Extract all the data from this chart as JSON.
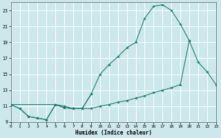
{
  "xlabel": "Humidex (Indice chaleur)",
  "xlim": [
    0,
    23
  ],
  "ylim": [
    9,
    24
  ],
  "yticks": [
    9,
    11,
    13,
    15,
    17,
    19,
    21,
    23
  ],
  "xticks": [
    0,
    1,
    2,
    3,
    4,
    5,
    6,
    7,
    8,
    9,
    10,
    11,
    12,
    13,
    14,
    15,
    16,
    17,
    18,
    19,
    20,
    21,
    22,
    23
  ],
  "bg_color": "#cce8ec",
  "grid_color": "#ffffff",
  "line_color": "#1a7a6e",
  "line1_x": [
    0,
    1,
    2,
    3,
    4,
    5,
    6,
    7,
    8,
    9
  ],
  "line1_y": [
    11.2,
    10.7,
    9.7,
    9.5,
    9.3,
    11.2,
    10.8,
    10.7,
    10.7,
    12.5
  ],
  "line2_x": [
    0,
    1,
    2,
    3,
    4,
    5,
    6,
    7,
    8,
    9,
    10,
    11,
    12,
    13,
    14,
    15,
    16,
    17,
    18,
    19,
    20
  ],
  "line2_y": [
    11.2,
    10.7,
    9.7,
    9.5,
    9.3,
    11.2,
    10.8,
    10.7,
    10.7,
    12.5,
    15.0,
    16.2,
    17.2,
    18.3,
    19.0,
    22.0,
    23.5,
    23.7,
    23.0,
    21.3,
    19.2
  ],
  "line3_x": [
    0,
    5,
    6,
    7,
    8,
    9,
    10,
    11,
    12,
    13,
    14,
    15,
    16,
    17,
    18,
    19,
    20,
    21,
    22,
    23
  ],
  "line3_y": [
    11.2,
    11.2,
    11.0,
    10.7,
    10.7,
    10.7,
    11.0,
    11.2,
    11.5,
    11.7,
    12.0,
    12.3,
    12.7,
    13.0,
    13.3,
    13.7,
    19.2,
    16.5,
    15.3,
    13.7
  ]
}
